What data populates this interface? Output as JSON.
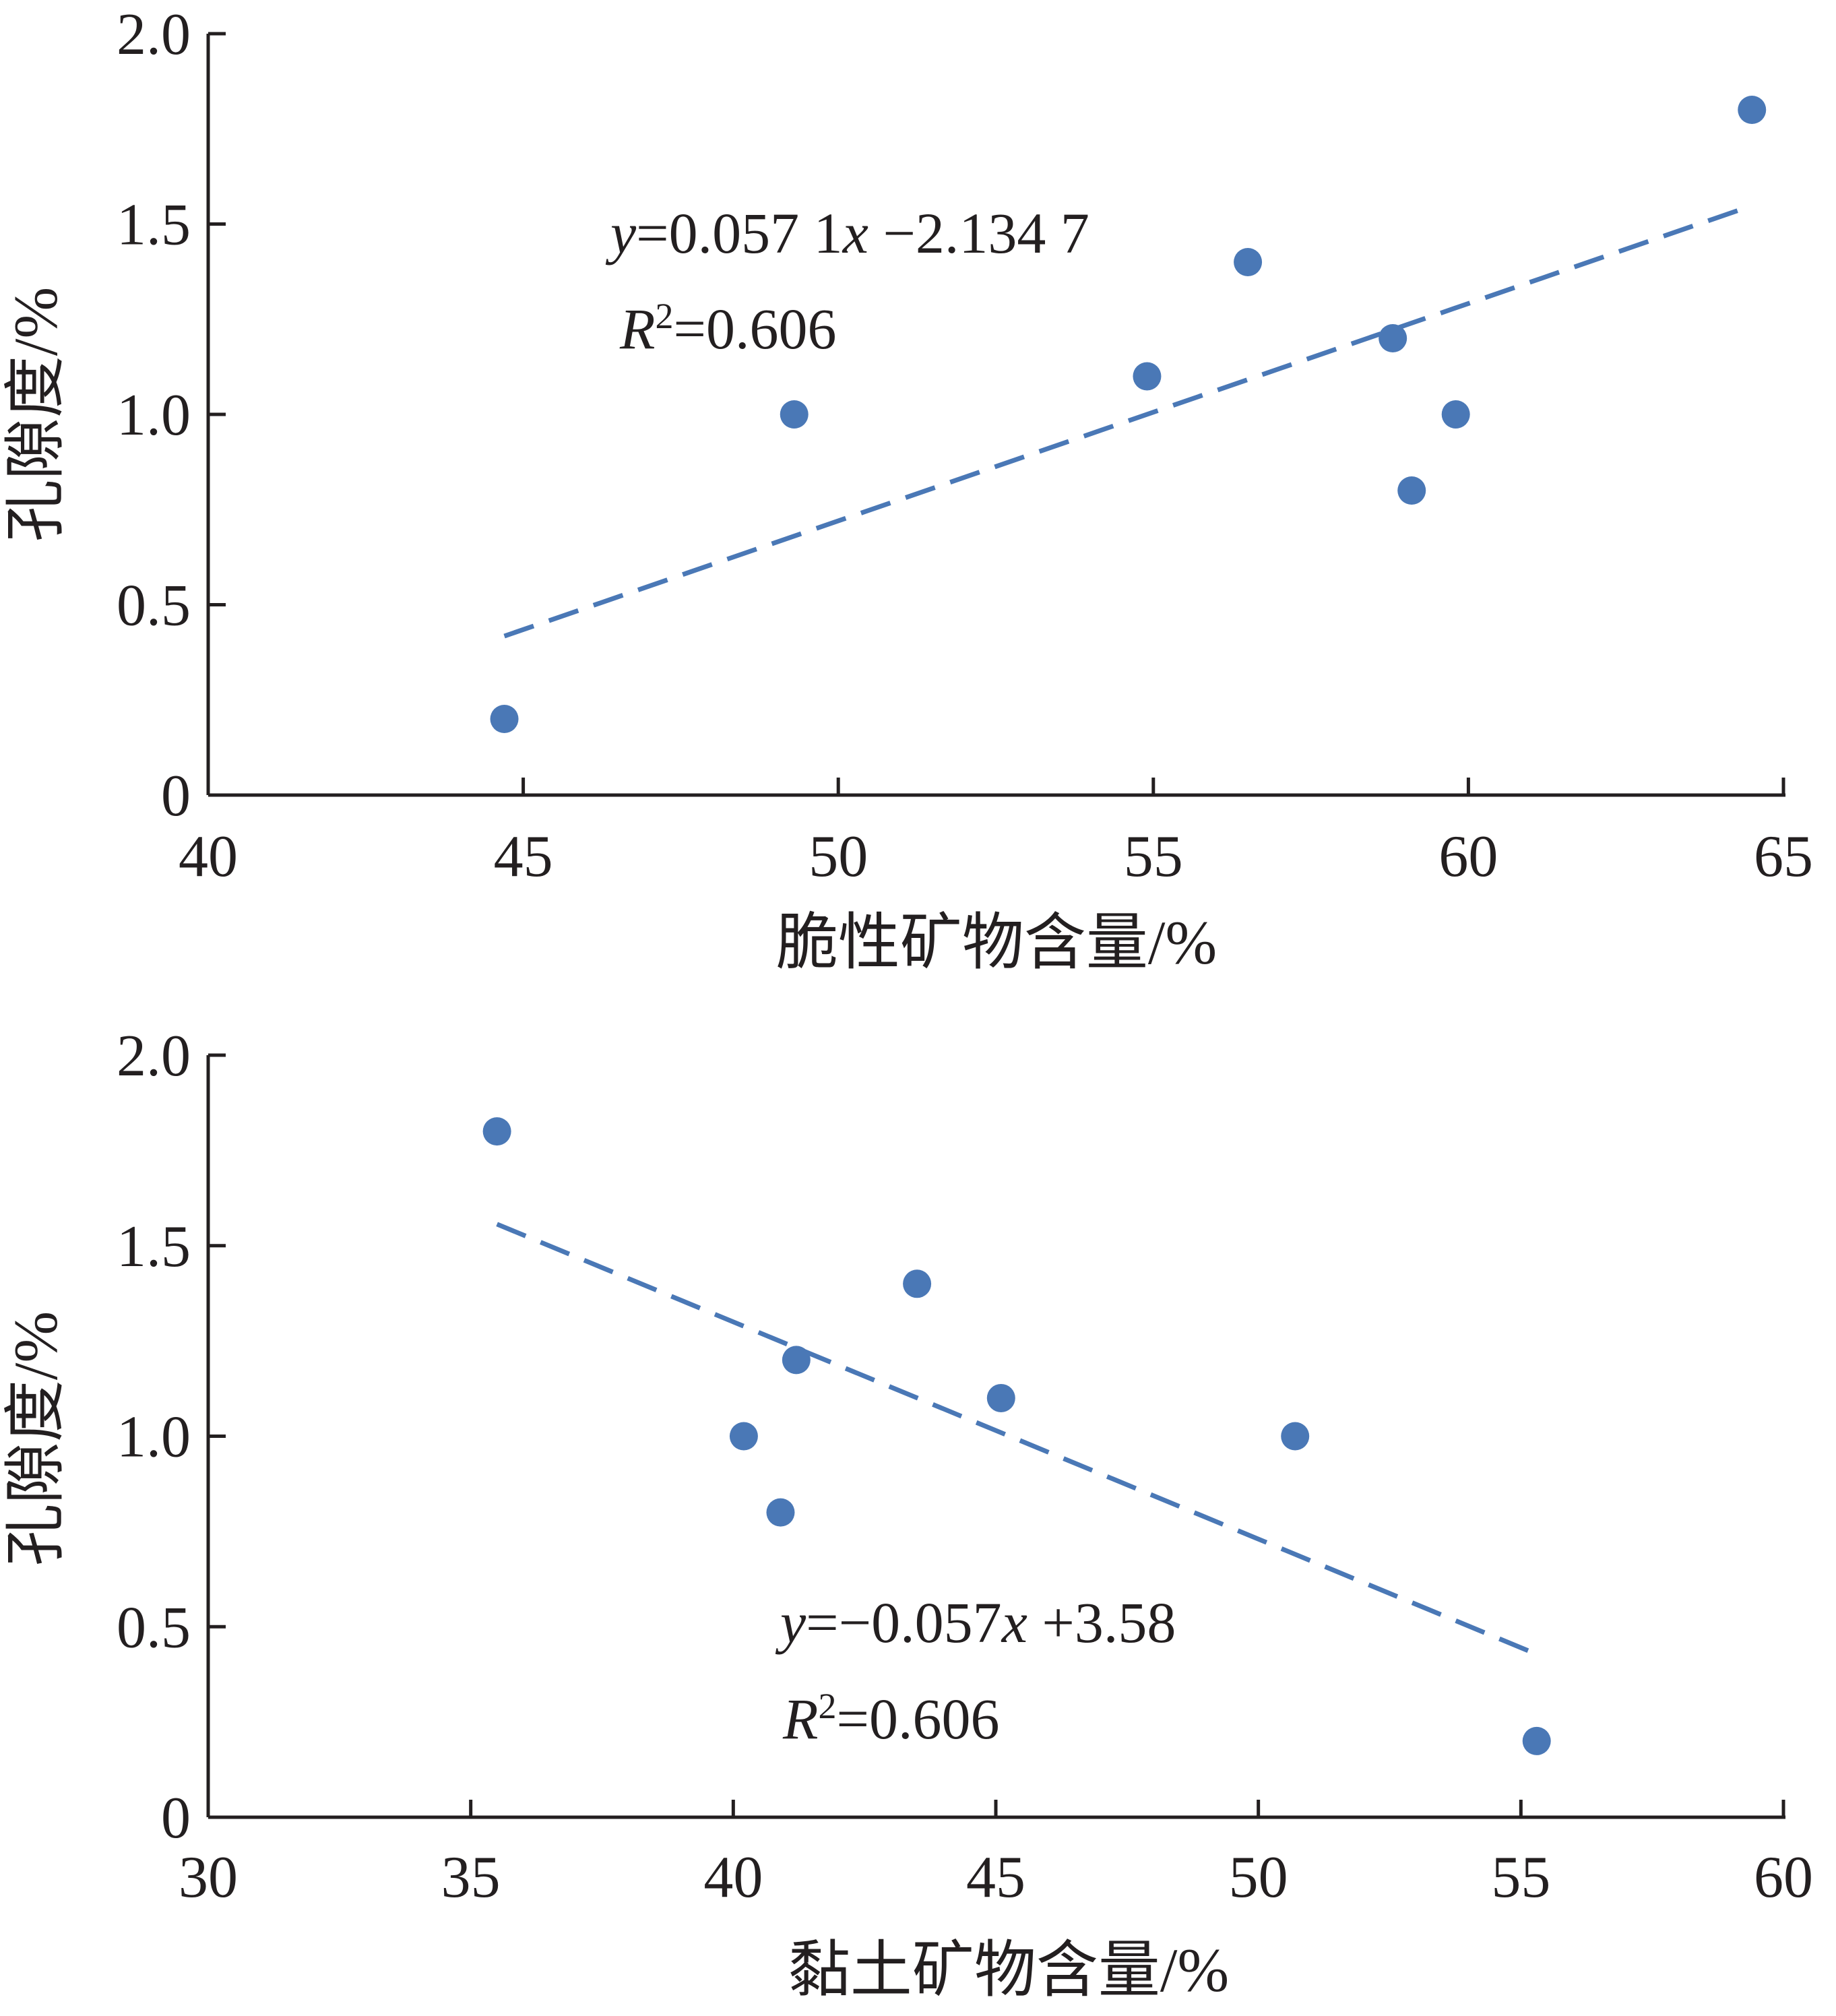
{
  "chart_data": [
    {
      "type": "scatter",
      "xlabel": "脆性矿物含量/%",
      "ylabel": "孔隙度/%",
      "xlim": [
        40,
        65
      ],
      "ylim": [
        0,
        2.0
      ],
      "xticks": [
        40,
        45,
        50,
        55,
        60,
        65
      ],
      "xtick_labels": [
        "40",
        "45",
        "50",
        "55",
        "60",
        "65"
      ],
      "yticks": [
        0,
        0.5,
        1.0,
        1.5,
        2.0
      ],
      "ytick_labels": [
        "0",
        "0.5",
        "1.0",
        "1.5",
        "2.0"
      ],
      "grid": false,
      "marker_color": "#4a78b6",
      "points": [
        {
          "x": 44.7,
          "y": 0.2
        },
        {
          "x": 49.3,
          "y": 1.0
        },
        {
          "x": 54.9,
          "y": 1.1
        },
        {
          "x": 56.5,
          "y": 1.4
        },
        {
          "x": 58.8,
          "y": 1.2
        },
        {
          "x": 59.1,
          "y": 0.8
        },
        {
          "x": 59.8,
          "y": 1.0
        },
        {
          "x": 64.5,
          "y": 1.8
        }
      ],
      "trendline": {
        "style": "dashed",
        "color": "#4a78b6",
        "slope": 0.0571,
        "intercept": -2.1347,
        "x_start": 44.7,
        "x_end": 64.5,
        "equation": {
          "y": "y",
          "rhs": "=0.057 1",
          "x": "x",
          "tail": " −2.134 7"
        },
        "r2": {
          "r": "R",
          "sup": "2",
          "value": "=0.606"
        }
      }
    },
    {
      "type": "scatter",
      "xlabel": "黏土矿物含量/%",
      "ylabel": "孔隙度/%",
      "xlim": [
        30,
        60
      ],
      "ylim": [
        0,
        2.0
      ],
      "xticks": [
        30,
        35,
        40,
        45,
        50,
        55,
        60
      ],
      "xtick_labels": [
        "30",
        "35",
        "40",
        "45",
        "50",
        "55",
        "60"
      ],
      "yticks": [
        0,
        0.5,
        1.0,
        1.5,
        2.0
      ],
      "ytick_labels": [
        "0",
        "0.5",
        "1.0",
        "1.5",
        "2.0"
      ],
      "grid": false,
      "marker_color": "#4a78b6",
      "points": [
        {
          "x": 35.5,
          "y": 1.8
        },
        {
          "x": 40.2,
          "y": 1.0
        },
        {
          "x": 40.9,
          "y": 0.8
        },
        {
          "x": 41.2,
          "y": 1.2
        },
        {
          "x": 43.5,
          "y": 1.4
        },
        {
          "x": 45.1,
          "y": 1.1
        },
        {
          "x": 50.7,
          "y": 1.0
        },
        {
          "x": 55.3,
          "y": 0.2
        }
      ],
      "trendline": {
        "style": "dashed",
        "color": "#4a78b6",
        "slope": -0.057,
        "intercept": 3.58,
        "x_start": 35.5,
        "x_end": 55.3,
        "equation": {
          "y": "y",
          "rhs": "=−0.057",
          "x": "x",
          "tail": " +3.58"
        },
        "r2": {
          "r": "R",
          "sup": "2",
          "value": "=0.606"
        }
      }
    }
  ]
}
